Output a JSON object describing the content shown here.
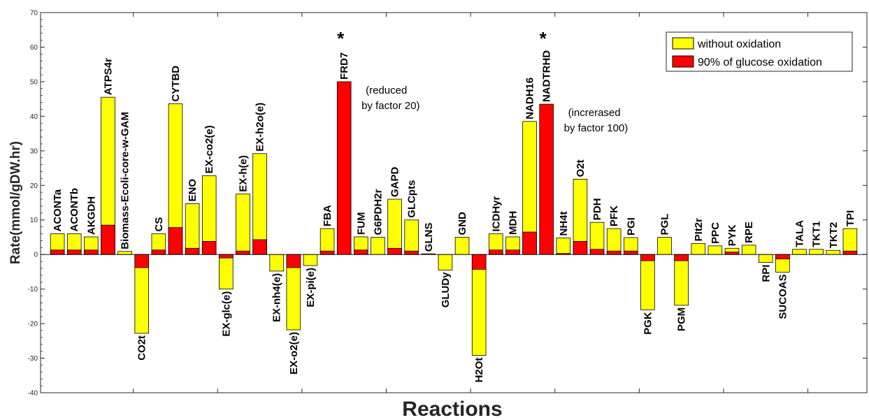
{
  "chart_data": {
    "type": "bar",
    "xlabel": "Reactions",
    "ylabel": "Rate(mmol/gDW.hr)",
    "ylim": [
      -40,
      70
    ],
    "yticks": [
      -40,
      -30,
      -20,
      -10,
      0,
      10,
      20,
      30,
      40,
      50,
      60,
      70
    ],
    "grid": false,
    "legend_position": "top-right",
    "colors": {
      "without": "#ffff00",
      "glucose": "#ff0000"
    },
    "categories": [
      "ACONTa",
      "ACONTb",
      "AKGDH",
      "ATPS4r",
      "Biomass-Ecoli-core-w-GAM",
      "CO2t",
      "CS",
      "CYTBD",
      "ENO",
      "EX-co2(e)",
      "EX-glc(e)",
      "EX-h(e)",
      "EX-h2o(e)",
      "EX-nh4(e)",
      "EX-o2(e)",
      "EX-pi(e)",
      "FBA",
      "FRD7",
      "FUM",
      "G6PDH2r",
      "GAPD",
      "GLCpts",
      "GLNS",
      "GLUDy",
      "GND",
      "H2Ot",
      "ICDHyr",
      "MDH",
      "NADH16",
      "NADTRHD",
      "NH4t",
      "O2t",
      "PDH",
      "PFK",
      "PGI",
      "PGK",
      "PGL",
      "PGM",
      "PIt2r",
      "PPC",
      "PYK",
      "RPE",
      "RPI",
      "SUCOAS",
      "TALA",
      "TKT1",
      "TKT2",
      "TPI"
    ],
    "series": [
      {
        "name": "without oxidation",
        "values": [
          6.0,
          6.0,
          5.1,
          45.5,
          0.9,
          -22.8,
          6.0,
          43.6,
          14.7,
          22.8,
          -10.0,
          17.5,
          29.2,
          -4.8,
          -21.8,
          -3.2,
          7.5,
          0.0,
          5.1,
          5.0,
          16.0,
          10.0,
          0.2,
          -4.5,
          5.0,
          -29.2,
          6.0,
          5.1,
          38.5,
          0.0,
          4.8,
          21.8,
          9.3,
          7.5,
          4.9,
          -16.0,
          5.0,
          -14.7,
          3.2,
          2.5,
          1.8,
          2.7,
          -2.3,
          -5.1,
          1.5,
          1.5,
          1.2,
          7.5
        ]
      },
      {
        "name": "90% of glucose oxidation",
        "values": [
          1.3,
          1.3,
          1.3,
          8.5,
          0.0,
          -3.8,
          1.3,
          7.8,
          1.8,
          3.8,
          -1.0,
          1.0,
          4.3,
          0.0,
          -3.8,
          0.0,
          1.0,
          50.0,
          1.3,
          0.0,
          1.8,
          1.0,
          0.0,
          0.0,
          0.0,
          -4.3,
          1.3,
          1.3,
          6.5,
          43.5,
          0.3,
          3.8,
          1.5,
          1.0,
          1.0,
          -1.8,
          0.0,
          -1.8,
          0.0,
          0.0,
          0.7,
          0.0,
          0.0,
          -1.3,
          0.0,
          0.0,
          0.0,
          1.0
        ]
      }
    ],
    "annotations": [
      {
        "text": "*",
        "category": "FRD7"
      },
      {
        "text": "*",
        "category": "NADTRHD"
      },
      {
        "lines": [
          "(reduced",
          "by factor 20)"
        ],
        "category": "FRD7"
      },
      {
        "lines": [
          "(increrased",
          "by factor 100)"
        ],
        "category": "NADTRHD"
      }
    ]
  }
}
